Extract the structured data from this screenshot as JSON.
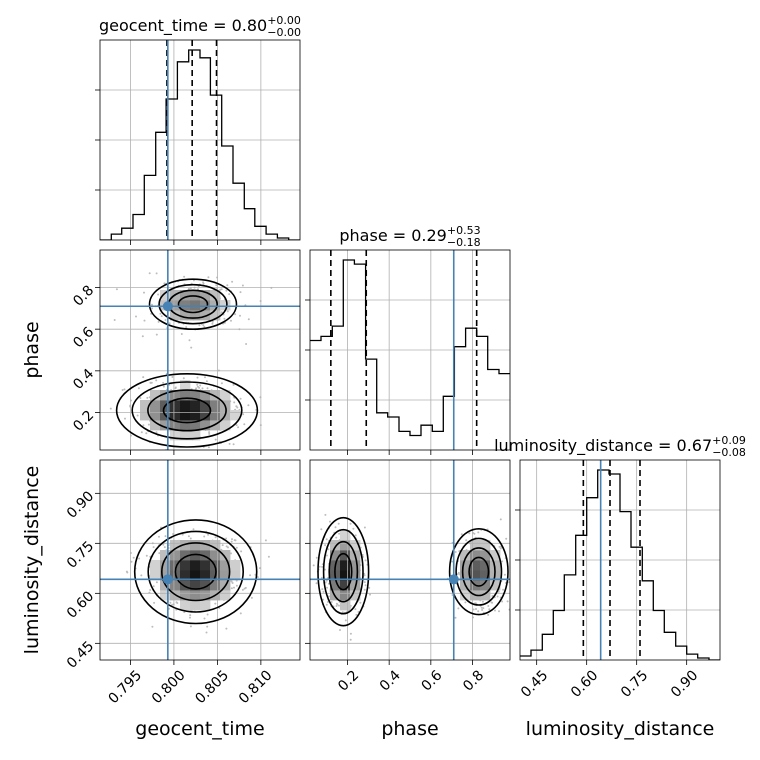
{
  "chart_data": {
    "type": "corner",
    "parameters": [
      "geocent_time",
      "phase",
      "luminosity_distance"
    ],
    "axis_labels": {
      "geocent_time": "geocent_time",
      "phase": "phase",
      "luminosity_distance": "luminosity_distance"
    },
    "ranges": {
      "geocent_time": [
        0.7915,
        0.8145
      ],
      "phase": [
        0.02,
        0.98
      ],
      "luminosity_distance": [
        0.4,
        1.0
      ]
    },
    "ticks": {
      "geocent_time": [
        "0.795",
        "0.800",
        "0.805",
        "0.810"
      ],
      "phase": [
        "0.2",
        "0.4",
        "0.6",
        "0.8"
      ],
      "luminosity_distance": [
        "0.45",
        "0.60",
        "0.75",
        "0.90"
      ]
    },
    "truths": {
      "geocent_time": 0.7993,
      "phase": 0.71,
      "luminosity_distance": 0.642
    },
    "titles": {
      "geocent_time": {
        "name": "geocent_time",
        "median": "0.80",
        "plus": "+0.00",
        "minus": "−0.00"
      },
      "phase": {
        "name": "phase",
        "median": "0.29",
        "plus": "+0.53",
        "minus": "−0.18"
      },
      "luminosity_distance": {
        "name": "luminosity_distance",
        "median": "0.67",
        "plus": "+0.09",
        "minus": "−0.08"
      }
    },
    "quantiles": {
      "geocent_time": [
        0.7992,
        0.8021,
        0.8049
      ],
      "phase": [
        0.12,
        0.29,
        0.82
      ],
      "luminosity_distance": [
        0.59,
        0.67,
        0.76
      ]
    },
    "histograms": {
      "geocent_time": {
        "edges": [
          0.7915,
          0.7928,
          0.794,
          0.7953,
          0.7966,
          0.7979,
          0.7991,
          0.8004,
          0.8017,
          0.803,
          0.8042,
          0.8055,
          0.8068,
          0.8081,
          0.8093,
          0.8106,
          0.8119,
          0.8132,
          0.8145
        ],
        "counts": [
          0.0,
          0.03,
          0.06,
          0.13,
          0.33,
          0.55,
          0.72,
          0.91,
          0.97,
          0.93,
          0.74,
          0.48,
          0.29,
          0.16,
          0.07,
          0.03,
          0.01,
          0.0
        ]
      },
      "phase": {
        "edges": [
          0.02,
          0.073,
          0.127,
          0.18,
          0.233,
          0.287,
          0.34,
          0.393,
          0.447,
          0.5,
          0.553,
          0.607,
          0.66,
          0.713,
          0.767,
          0.82,
          0.873,
          0.927,
          0.98
        ],
        "counts": [
          0.53,
          0.55,
          0.6,
          0.92,
          0.9,
          0.44,
          0.18,
          0.16,
          0.09,
          0.07,
          0.12,
          0.09,
          0.26,
          0.5,
          0.59,
          0.55,
          0.39,
          0.37
        ]
      },
      "luminosity_distance": {
        "edges": [
          0.4,
          0.433,
          0.467,
          0.5,
          0.533,
          0.567,
          0.6,
          0.633,
          0.667,
          0.7,
          0.733,
          0.767,
          0.8,
          0.833,
          0.867,
          0.9,
          0.933,
          0.967,
          1.0
        ],
        "counts": [
          0.02,
          0.05,
          0.13,
          0.25,
          0.43,
          0.63,
          0.82,
          0.96,
          0.94,
          0.75,
          0.57,
          0.4,
          0.25,
          0.14,
          0.07,
          0.03,
          0.01,
          0.0
        ]
      }
    },
    "density_2d": [
      {
        "x": "geocent_time",
        "y": "phase",
        "modes": [
          {
            "cx": 0.8022,
            "cy": 0.72,
            "rx": 0.005,
            "ry": 0.12,
            "weight": 0.55
          },
          {
            "cx": 0.8015,
            "cy": 0.21,
            "rx": 0.006,
            "ry": 0.13,
            "weight": 1.0
          }
        ]
      },
      {
        "x": "geocent_time",
        "y": "luminosity_distance",
        "modes": [
          {
            "cx": 0.8025,
            "cy": 0.665,
            "rx": 0.0052,
            "ry": 0.115,
            "weight": 1.0
          }
        ]
      },
      {
        "x": "phase",
        "y": "luminosity_distance",
        "modes": [
          {
            "cx": 0.18,
            "cy": 0.665,
            "rx": 0.09,
            "ry": 0.12,
            "weight": 1.0
          },
          {
            "cx": 0.83,
            "cy": 0.665,
            "rx": 0.12,
            "ry": 0.11,
            "weight": 0.75
          }
        ]
      }
    ],
    "grid": true
  }
}
